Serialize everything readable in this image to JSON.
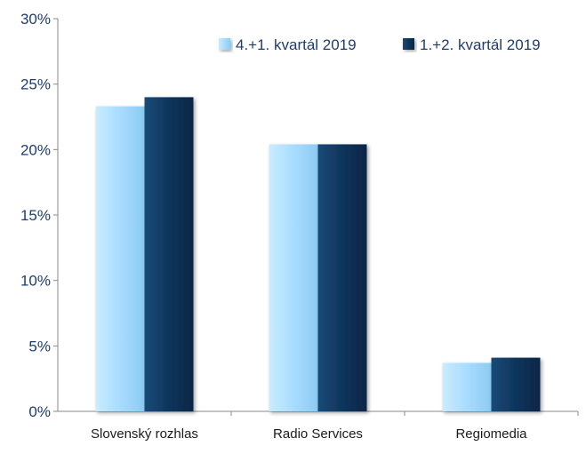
{
  "chart_data": {
    "type": "bar",
    "categories": [
      "Slovenský rozhlas",
      "Radio Services",
      "Regiomedia"
    ],
    "series": [
      {
        "name": "4.+1. kvartál 2019",
        "values": [
          23.3,
          20.4,
          3.7
        ],
        "color": "#a9dcff"
      },
      {
        "name": "1.+2. kvartál 2019",
        "values": [
          24.0,
          20.4,
          4.1
        ],
        "color": "#0f355c"
      }
    ],
    "ylim": [
      0,
      30
    ],
    "yticks": [
      0,
      5,
      10,
      15,
      20,
      25,
      30
    ],
    "ytick_labels": [
      "0%",
      "5%",
      "10%",
      "15%",
      "20%",
      "25%",
      "30%"
    ],
    "grid": false,
    "legend_position": "top-right",
    "title": "",
    "xlabel": "",
    "ylabel": ""
  }
}
